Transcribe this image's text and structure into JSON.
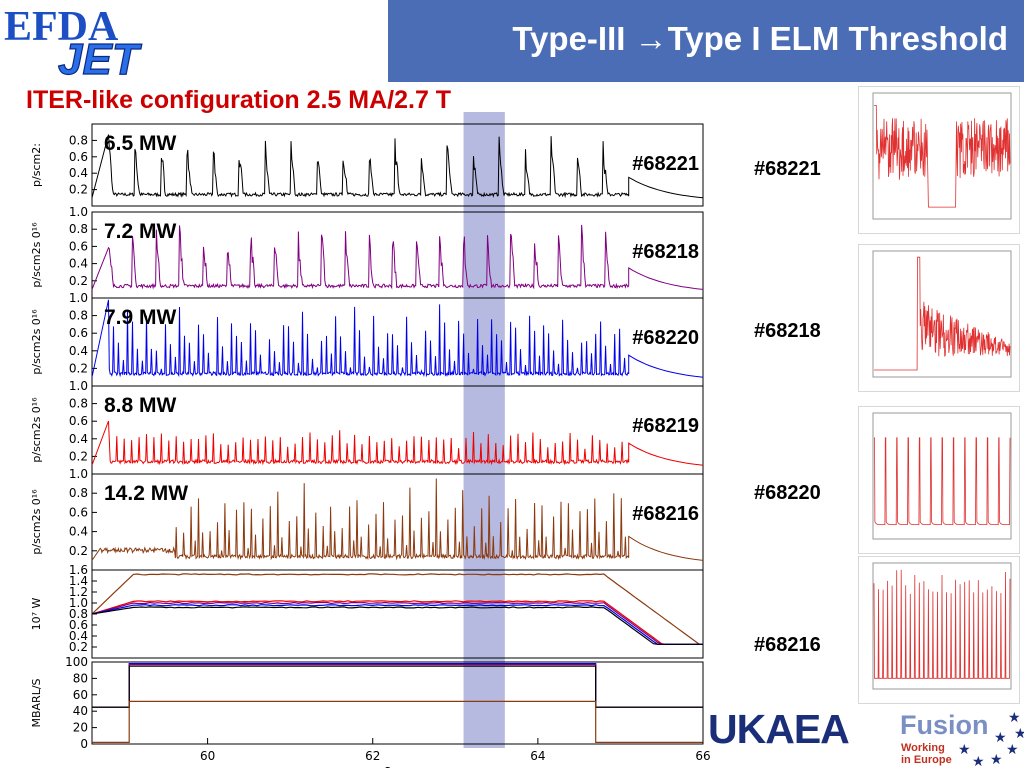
{
  "header": {
    "logo_text_1": "EFDA",
    "logo_text_2": "JET",
    "title": "Type-III →Type I ELM Threshold",
    "subtitle": "ITER-like configuration 2.5 MA/2.7 T"
  },
  "colors": {
    "title_bar": "#4a6db5",
    "subtitle": "#cc0000",
    "highlight_band": "#9da3d6",
    "shots": [
      "#000000",
      "#800080",
      "#0000ee",
      "#ee0000",
      "#8b3a0f"
    ]
  },
  "chart_data": {
    "type": "line",
    "xlabel": "s",
    "x_ticks": [
      "60",
      "62",
      "64",
      "66"
    ],
    "xlim": [
      58.6,
      66
    ],
    "highlight_band": [
      63.1,
      63.6
    ],
    "panels": [
      {
        "shot": "#68221",
        "power": "6.5 MW",
        "ylabel": "p/scm2:",
        "ylim": [
          0,
          1.0
        ],
        "y_ticks": [
          "0.2",
          "0.4",
          "0.6",
          "0.8"
        ]
      },
      {
        "shot": "#68218",
        "power": "7.2 MW",
        "ylabel": "p/scm2s 0¹⁶",
        "ylim": [
          0,
          1.0
        ],
        "y_ticks": [
          "0.2",
          "0.4",
          "0.6",
          "0.8",
          "1.0"
        ]
      },
      {
        "shot": "#68220",
        "power": "7.9 MW",
        "ylabel": "p/scm2s 0¹⁶",
        "ylim": [
          0,
          1.0
        ],
        "y_ticks": [
          "0.2",
          "0.4",
          "0.6",
          "0.8",
          "1.0"
        ]
      },
      {
        "shot": "#68219",
        "power": "8.8 MW",
        "ylabel": "p/scm2s 0¹⁶",
        "ylim": [
          0,
          1.0
        ],
        "y_ticks": [
          "0.2",
          "0.4",
          "0.6",
          "0.8",
          "1.0"
        ]
      },
      {
        "shot": "#68216",
        "power": "14.2 MW",
        "ylabel": "p/scm2s 0¹⁶",
        "ylim": [
          0,
          1.0
        ],
        "y_ticks": [
          "0.2",
          "0.4",
          "0.6",
          "0.8",
          "1.0"
        ]
      },
      {
        "ylabel": "10⁷ W",
        "ylim": [
          0,
          1.6
        ],
        "y_ticks": [
          "0.2",
          "0.4",
          "0.6",
          "0.8",
          "1.0",
          "1.2",
          "1.4",
          "1.6"
        ]
      },
      {
        "ylabel": "MBARL/S",
        "ylim": [
          0,
          100
        ],
        "y_ticks": [
          "0",
          "20",
          "40",
          "60",
          "80",
          "100"
        ]
      }
    ],
    "thumbnails": [
      {
        "shot": "#68221"
      },
      {
        "shot": "#68218"
      },
      {
        "shot": "#68220"
      },
      {
        "shot": "#68216"
      }
    ]
  },
  "footer": {
    "ukaea": "UKAEA",
    "fusion_title": "Fusion",
    "fusion_line1": "Working",
    "fusion_line2": "in Europe"
  }
}
